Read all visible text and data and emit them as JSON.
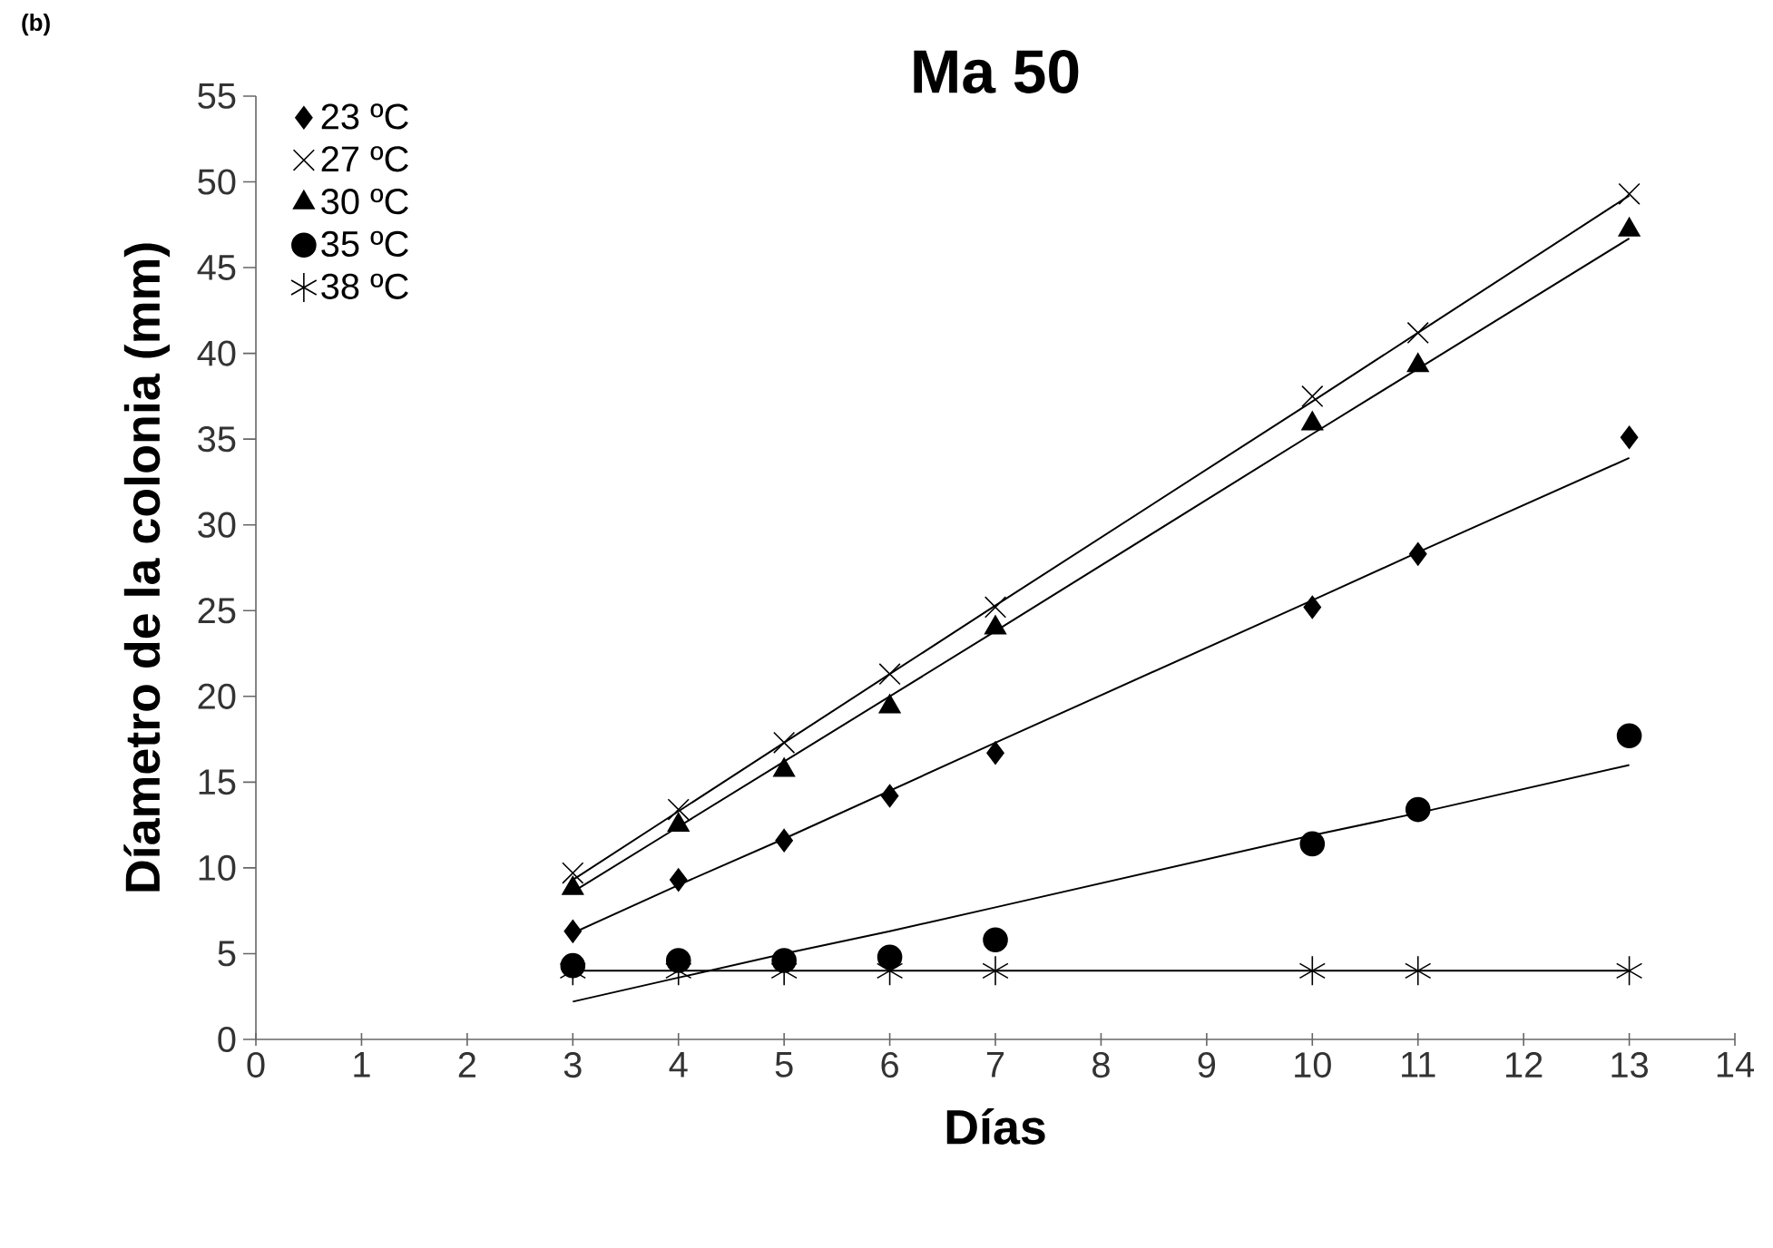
{
  "chart_data": {
    "type": "scatter",
    "title": "Ma  50",
    "xlabel": "Días",
    "ylabel": "Díametro de la colonia (mm)",
    "annotations": [
      "(b)"
    ],
    "xlim": [
      0,
      14
    ],
    "xticks": [
      0,
      1,
      2,
      3,
      4,
      5,
      6,
      7,
      8,
      9,
      10,
      11,
      12,
      13,
      14
    ],
    "ylim": [
      0,
      55
    ],
    "yticks": [
      0,
      5,
      10,
      15,
      20,
      25,
      30,
      35,
      40,
      45,
      50,
      55
    ],
    "legend": "top left",
    "x": [
      3,
      4,
      5,
      6,
      7,
      10,
      11,
      13
    ],
    "series": [
      {
        "name": "23 ºC",
        "color": "#000000",
        "marker": "diamond",
        "values": [
          6.3,
          9.3,
          11.6,
          14.2,
          16.7,
          25.2,
          28.3,
          35.1
        ]
      },
      {
        "name": "27 ºC",
        "color": "#000000",
        "marker": "cross",
        "values": [
          9.7,
          13.4,
          17.3,
          21.3,
          25.2,
          37.5,
          41.2,
          49.3
        ]
      },
      {
        "name": "30 ºC",
        "color": "#000000",
        "marker": "triangle",
        "values": [
          8.8,
          12.5,
          15.7,
          19.4,
          24.0,
          35.9,
          39.3,
          47.2
        ]
      },
      {
        "name": "35 ºC",
        "color": "#000000",
        "marker": "circle",
        "values": [
          4.3,
          4.6,
          4.6,
          4.8,
          5.8,
          11.4,
          13.4,
          17.7
        ]
      },
      {
        "name": "38 ºC",
        "color": "#000000",
        "values": [
          4.0,
          4.0,
          4.0,
          4.0,
          4.0,
          4.0,
          4.0,
          4.0
        ]
      },
      {
        "type": "line",
        "color": "#000000",
        "values": [
          6.2,
          9.0,
          11.7,
          14.5,
          17.3,
          25.6,
          28.4,
          33.9
        ]
      },
      {
        "type": "line",
        "color": "#000000",
        "values": [
          9.3,
          13.3,
          17.3,
          21.3,
          25.3,
          37.2,
          41.2,
          49.2
        ]
      },
      {
        "type": "line",
        "color": "#000000",
        "values": [
          8.6,
          12.4,
          16.2,
          20.0,
          23.8,
          35.3,
          39.1,
          46.7
        ]
      },
      {
        "type": "line",
        "color": "#000000",
        "values": [
          2.2,
          3.6,
          5.0,
          6.3,
          7.7,
          11.9,
          13.2,
          16.0
        ]
      },
      {
        "type": "line",
        "color": "#000000",
        "values": [
          4.0,
          4.0,
          4.0,
          4.0,
          4.0,
          4.0,
          4.0,
          4.0
        ]
      }
    ]
  }
}
